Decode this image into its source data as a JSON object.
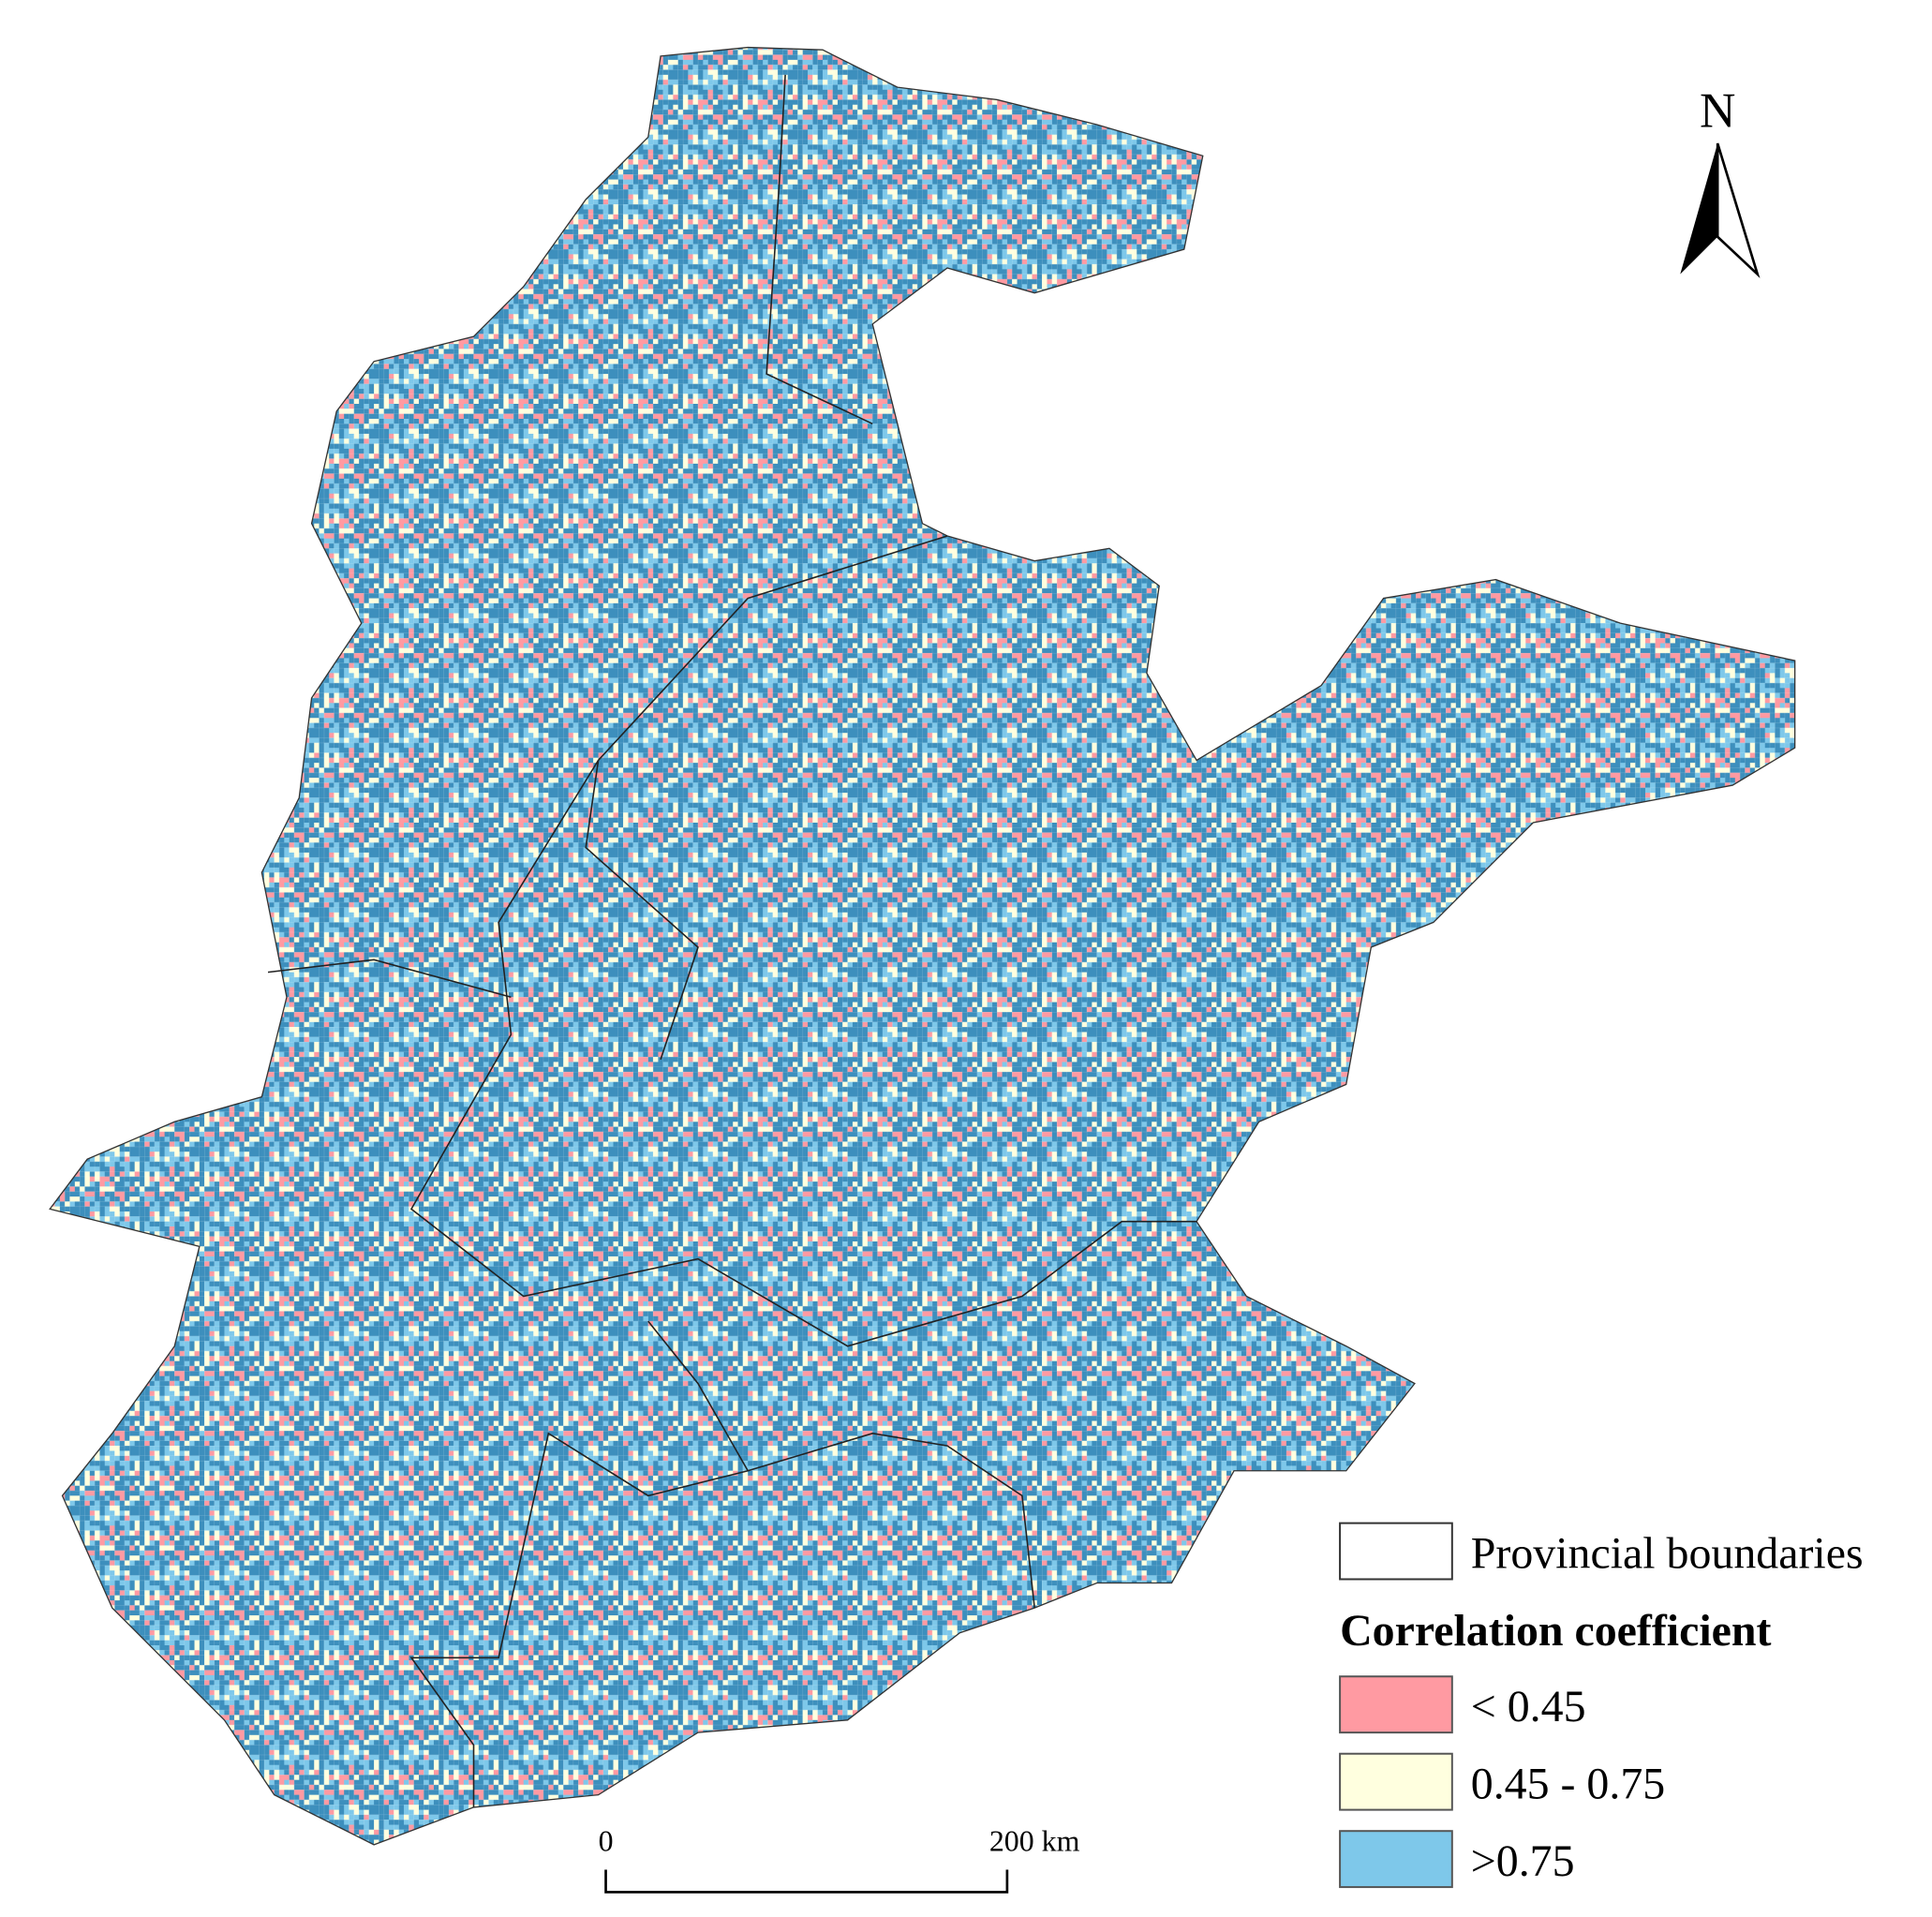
{
  "north_label": "N",
  "legend": {
    "boundary_label": "Provincial boundaries",
    "title": "Correlation coefficient",
    "items": [
      {
        "label": "< 0.45",
        "color": "#ff9aa2"
      },
      {
        "label": "0.45 - 0.75",
        "color": "#ffffdf"
      },
      {
        "label": ">0.75",
        "color": "#7ec8ea"
      }
    ]
  },
  "scale_bar": {
    "start_label": "0",
    "end_label": "200 km"
  }
}
